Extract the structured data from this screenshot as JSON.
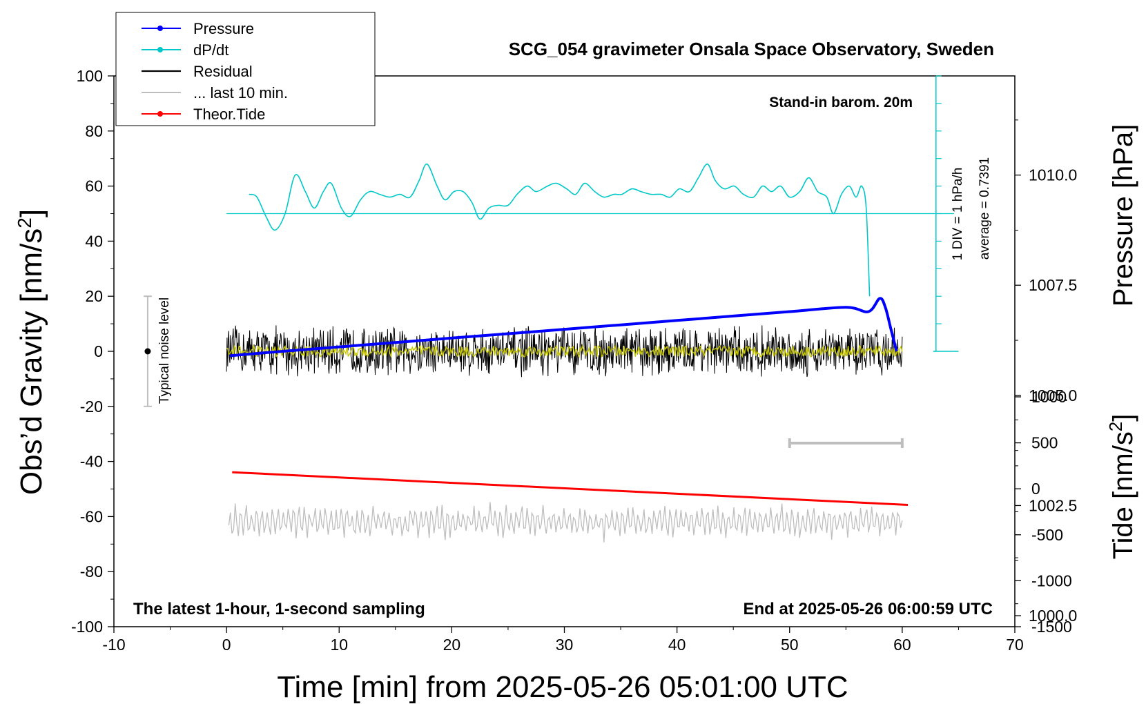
{
  "chart_data": {
    "type": "line",
    "title": "SCG_054 gravimeter Onsala Space Observatory, Sweden",
    "xlabel": "Time [min] from 2025-05-26 05:01:00 UTC",
    "ylabel_prefix": "Obs’d Gravity [nm/s",
    "ylabel_sup": "2",
    "ylabel_suffix": "]",
    "y2label": "Pressure [hPa]",
    "y3label_prefix": "Tide [nm/s",
    "y3label_sup": "2",
    "y3label_suffix": "]",
    "xlim": [
      -10,
      70
    ],
    "ylim": [
      -100,
      100
    ],
    "x_ticks": [
      "-10",
      "0",
      "10",
      "20",
      "30",
      "40",
      "50",
      "60",
      "70"
    ],
    "y_ticks": [
      "-100",
      "-80",
      "-60",
      "-40",
      "-20",
      "0",
      "20",
      "40",
      "60",
      "80",
      "100"
    ],
    "pressure_ticks": [
      "1000.0",
      "1002.5",
      "1005.0",
      "1007.5",
      "1010.0"
    ],
    "pressure_range": [
      999.75,
      1012.25
    ],
    "tide_ticks": [
      "-1500",
      "-1000",
      "-500",
      "0",
      "500",
      "1000"
    ],
    "tide_range": [
      -1500,
      1000
    ],
    "annotations": {
      "barometer": "Stand-in barom. 20m",
      "footer_left": "The latest 1-hour, 1-second sampling",
      "footer_right": "End at 2025-05-26 06:00:59 UTC",
      "div_label": "1 DIV = 1 hPa/h",
      "average_label": "average = 0.7391",
      "noise_label": "Typical noise level"
    },
    "legend": [
      {
        "name": "Pressure",
        "color": "#0000ff",
        "marker": true
      },
      {
        "name": "dP/dt",
        "color": "#00c8c8",
        "marker": true
      },
      {
        "name": "Residual",
        "color": "#000000",
        "marker": false
      },
      {
        "name": "... last 10 min.",
        "color": "#bebebe",
        "marker": false
      },
      {
        "name": "Theor.Tide",
        "color": "#ff0000",
        "marker": true
      }
    ],
    "legend_position": "top-left",
    "series": [
      {
        "name": "Pressure",
        "axis": "pressure",
        "x": [
          0.3,
          5,
          10,
          15,
          20,
          25,
          30,
          35,
          40,
          45,
          50,
          55,
          57,
          58,
          58.5,
          59,
          59.5
        ],
        "values": [
          1005.9,
          1006.0,
          1006.1,
          1006.2,
          1006.3,
          1006.4,
          1006.5,
          1006.6,
          1006.7,
          1006.8,
          1006.9,
          1007.0,
          1006.9,
          1007.2,
          1007.0,
          1006.5,
          1006.0
        ]
      },
      {
        "name": "dP/dt",
        "axis": "rate",
        "baseline": 50,
        "x": [
          2,
          2.7,
          3.5,
          4.3,
          5.2,
          6.1,
          7.0,
          7.8,
          8.6,
          9.3,
          10.2,
          11,
          11.9,
          12.7,
          13.6,
          14.5,
          15.4,
          16.3,
          17.1,
          17.8,
          18.7,
          19.4,
          20.2,
          21,
          21.8,
          22.5,
          23.3,
          24.1,
          25,
          25.8,
          26.7,
          27.5,
          28.5,
          29.3,
          30.2,
          31,
          31.8,
          32.7,
          33.5,
          34.4,
          35.1,
          36,
          36.8,
          37.7,
          38.6,
          39.4,
          40.2,
          41.1,
          41.9,
          42.7,
          43.4,
          44.2,
          45.1,
          45.9,
          46.8,
          47.6,
          48.4,
          49.2,
          50,
          50.9,
          51.7,
          52.5,
          53.3,
          53.9,
          54.6,
          55.3,
          55.9,
          56.4,
          56.8,
          57.1
        ],
        "values": [
          57,
          56,
          49,
          44,
          50,
          64,
          58,
          52,
          58,
          61,
          52,
          49,
          55,
          58,
          57,
          56,
          57,
          56,
          62,
          68,
          60,
          55,
          58,
          58,
          54,
          48,
          52,
          53,
          53,
          57,
          60,
          58,
          60,
          61,
          59,
          57,
          61,
          58,
          56,
          57,
          57,
          59,
          58,
          57,
          57,
          56,
          59,
          58,
          63,
          68,
          62,
          59,
          60,
          57,
          56,
          60,
          58,
          60,
          56,
          58,
          63,
          58,
          56,
          50,
          57,
          60,
          56,
          60,
          52,
          20
        ]
      },
      {
        "name": "Residual",
        "x_range": [
          0,
          60
        ],
        "amplitude": 9
      },
      {
        "name": "Residual (smoothed)",
        "x_range": [
          0,
          60
        ],
        "color": "#c8c800",
        "amplitude": 2
      },
      {
        "name": "... last 10 min.",
        "x_range": [
          0.2,
          60
        ],
        "center": -62,
        "amplitude": 6
      },
      {
        "name": "Theor.Tide",
        "axis": "tide",
        "x": [
          0.5,
          60.5
        ],
        "values": [
          180,
          -175
        ]
      }
    ],
    "noise_bar": {
      "x": -7,
      "y_low": -20,
      "y_high": 20
    },
    "scale_bar": {
      "x_start": 50,
      "x_end": 60
    }
  }
}
